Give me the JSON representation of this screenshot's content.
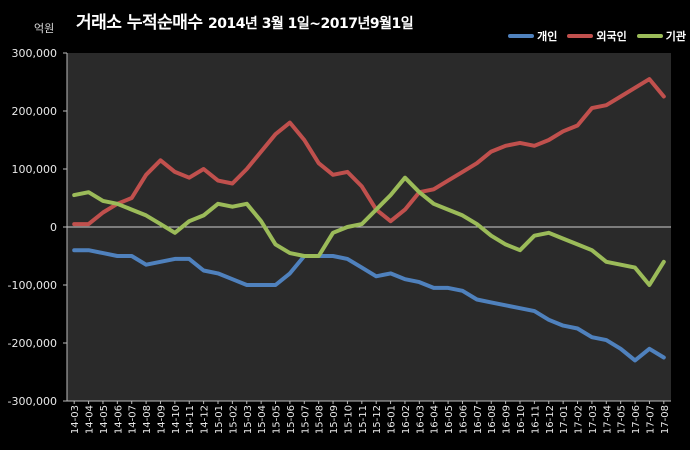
{
  "chart_data": {
    "type": "line",
    "title": "거래소 누적순매수",
    "subtitle": "2014년 3월 1일~2017년9월1일",
    "unit_label": "억원",
    "ylim": [
      -300000,
      300000
    ],
    "yticks": [
      300000,
      200000,
      100000,
      0,
      -100000,
      -200000,
      -300000
    ],
    "ytick_labels": [
      "300,000",
      "200,000",
      "100,000",
      "0",
      "-100,000",
      "-200,000",
      "-300,000"
    ],
    "grid": false,
    "legend_position": "top-right",
    "categories": [
      "14-03",
      "14-04",
      "14-05",
      "14-06",
      "14-07",
      "14-08",
      "14-09",
      "14-10",
      "14-11",
      "14-12",
      "15-01",
      "15-02",
      "15-03",
      "15-04",
      "15-05",
      "15-06",
      "15-07",
      "15-08",
      "15-09",
      "15-10",
      "15-11",
      "15-12",
      "16-01",
      "16-02",
      "16-03",
      "16-04",
      "16-05",
      "16-06",
      "16-07",
      "16-08",
      "16-09",
      "16-10",
      "16-11",
      "16-12",
      "17-01",
      "17-02",
      "17-03",
      "17-04",
      "17-05",
      "17-06",
      "17-07",
      "17-08"
    ],
    "series": [
      {
        "name": "개인",
        "color": "#4f81bd",
        "values": [
          -40000,
          -40000,
          -45000,
          -50000,
          -50000,
          -65000,
          -60000,
          -55000,
          -55000,
          -75000,
          -80000,
          -90000,
          -100000,
          -100000,
          -100000,
          -80000,
          -50000,
          -50000,
          -50000,
          -55000,
          -70000,
          -85000,
          -80000,
          -90000,
          -95000,
          -105000,
          -105000,
          -110000,
          -125000,
          -130000,
          -135000,
          -140000,
          -145000,
          -160000,
          -170000,
          -175000,
          -190000,
          -195000,
          -210000,
          -230000,
          -210000,
          -225000
        ]
      },
      {
        "name": "외국인",
        "color": "#c0504d",
        "values": [
          5000,
          5000,
          25000,
          40000,
          50000,
          90000,
          115000,
          95000,
          85000,
          100000,
          80000,
          75000,
          100000,
          130000,
          160000,
          180000,
          150000,
          110000,
          90000,
          95000,
          70000,
          30000,
          10000,
          30000,
          60000,
          65000,
          80000,
          95000,
          110000,
          130000,
          140000,
          145000,
          140000,
          150000,
          165000,
          175000,
          205000,
          210000,
          225000,
          240000,
          255000,
          225000
        ]
      },
      {
        "name": "기관",
        "color": "#9bbb59",
        "values": [
          55000,
          60000,
          45000,
          40000,
          30000,
          20000,
          5000,
          -10000,
          10000,
          20000,
          40000,
          35000,
          40000,
          10000,
          -30000,
          -45000,
          -50000,
          -50000,
          -10000,
          0,
          5000,
          30000,
          55000,
          85000,
          60000,
          40000,
          30000,
          20000,
          5000,
          -15000,
          -30000,
          -40000,
          -15000,
          -10000,
          -20000,
          -30000,
          -40000,
          -60000,
          -65000,
          -70000,
          -100000,
          -60000
        ]
      }
    ]
  }
}
